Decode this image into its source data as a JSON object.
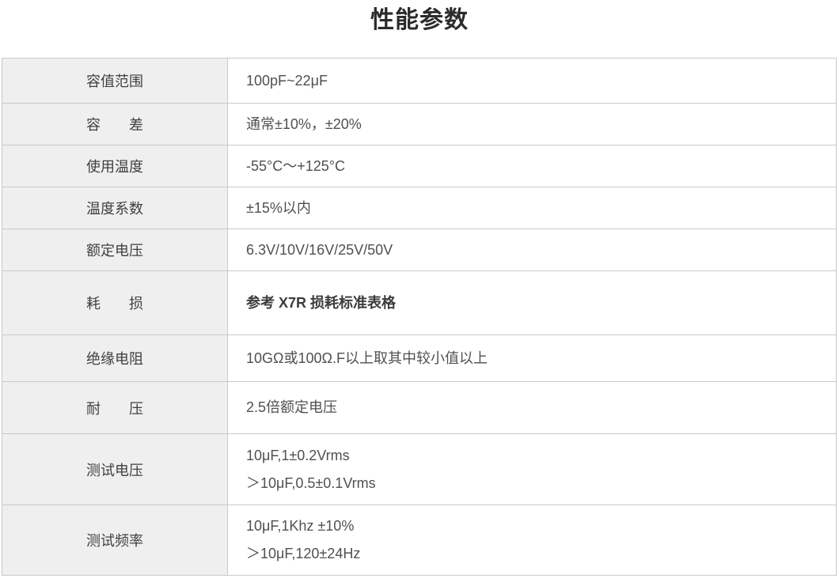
{
  "page": {
    "title": "性能参数"
  },
  "colors": {
    "label_cell_background": "#efefef",
    "table_border": "#c9c9c9",
    "title_text": "#2b2b2b",
    "label_text": "#3f3f3f",
    "value_text": "#505050"
  },
  "table": {
    "rows": [
      {
        "label": "容值范围",
        "values": [
          "100pF~22μF"
        ],
        "bold": false
      },
      {
        "label": "容　　差",
        "values": [
          "通常±10%，±20%"
        ],
        "bold": false
      },
      {
        "label": "使用温度",
        "values": [
          "-55°C～+125°C"
        ],
        "bold": false
      },
      {
        "label": "温度系数",
        "values": [
          "±15%以内"
        ],
        "bold": false
      },
      {
        "label": "额定电压",
        "values": [
          "6.3V/10V/16V/25V/50V"
        ],
        "bold": false
      },
      {
        "label": "耗　　损",
        "values": [
          "参考 X7R 损耗标准表格"
        ],
        "bold": true
      },
      {
        "label": "绝缘电阻",
        "values": [
          "10GΩ或100Ω.F以上取其中较小值以上"
        ],
        "bold": false
      },
      {
        "label": "耐　　压",
        "values": [
          "2.5倍额定电压"
        ],
        "bold": false
      },
      {
        "label": "测试电压",
        "values": [
          "10μF,1±0.2Vrms",
          "＞10μF,0.5±0.1Vrms"
        ],
        "bold": false
      },
      {
        "label": "测试频率",
        "values": [
          "10μF,1Khz ±10%",
          "＞10μF,120±24Hz"
        ],
        "bold": false
      }
    ]
  }
}
